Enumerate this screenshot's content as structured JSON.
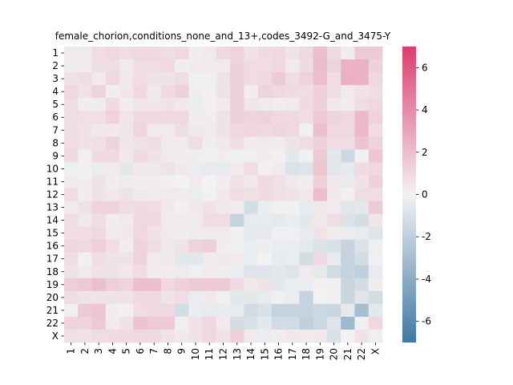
{
  "chart_data": {
    "type": "heatmap",
    "title": "female_chorion,conditions_none_and_13+,codes_3492-G_and_3475-Y",
    "rows": [
      "1",
      "2",
      "3",
      "4",
      "5",
      "6",
      "7",
      "8",
      "9",
      "10",
      "11",
      "12",
      "13",
      "14",
      "15",
      "16",
      "17",
      "18",
      "19",
      "20",
      "21",
      "22",
      "X"
    ],
    "cols": [
      "1",
      "2",
      "3",
      "4",
      "5",
      "6",
      "7",
      "8",
      "9",
      "10",
      "11",
      "12",
      "13",
      "14",
      "15",
      "16",
      "17",
      "18",
      "19",
      "20",
      "21",
      "22",
      "X"
    ],
    "vmin": -7,
    "vmax": 7,
    "colorbar_ticks": [
      "-6",
      "-4",
      "-2",
      "0",
      "2",
      "4",
      "6"
    ],
    "colorbar_tick_values": [
      -6,
      -4,
      -2,
      0,
      2,
      4,
      6
    ],
    "colormap": {
      "low": "#3f78a3",
      "mid": "#f2f2f2",
      "high": "#dc3e6e"
    },
    "values": [
      [
        0.3,
        0.3,
        0.8,
        1.0,
        0.8,
        1.0,
        1.0,
        0.8,
        1.0,
        0.2,
        0.3,
        1.0,
        1.2,
        0.6,
        0.9,
        1.0,
        0.6,
        1.0,
        2.0,
        1.0,
        0.2,
        1.6,
        1.5
      ],
      [
        0.2,
        0.2,
        0.8,
        0.8,
        0.3,
        0.8,
        0.8,
        0.9,
        0.2,
        0.3,
        0.3,
        0.3,
        1.3,
        0.8,
        0.8,
        1.0,
        0.3,
        0.9,
        2.1,
        1.2,
        2.5,
        2.5,
        1.3
      ],
      [
        0.6,
        0.8,
        0.3,
        1.0,
        0.4,
        0.8,
        0.6,
        0.6,
        0.8,
        -0.2,
        -0.2,
        0.6,
        1.4,
        0.8,
        0.9,
        1.5,
        0.8,
        1.2,
        2.0,
        0.8,
        2.6,
        2.5,
        1.0
      ],
      [
        1.0,
        0.6,
        1.2,
        0.2,
        0.5,
        1.0,
        0.4,
        0.9,
        1.3,
        0.2,
        0.1,
        0.6,
        1.3,
        0.2,
        1.2,
        1.0,
        0.9,
        0.8,
        1.3,
        0.8,
        0.3,
        0.6,
        0.8
      ],
      [
        0.8,
        0.2,
        0.2,
        0.9,
        0.2,
        0.5,
        0.5,
        0.6,
        0.4,
        -0.3,
        0.1,
        0.3,
        1.3,
        0.5,
        0.3,
        0.2,
        0.3,
        0.9,
        1.3,
        0.4,
        0.2,
        0.8,
        1.0
      ],
      [
        0.8,
        0.7,
        0.7,
        1.2,
        0.5,
        1.0,
        1.0,
        1.0,
        1.0,
        0.2,
        0.2,
        0.6,
        1.3,
        1.2,
        1.3,
        1.0,
        1.0,
        0.8,
        1.6,
        1.2,
        1.0,
        2.2,
        1.2
      ],
      [
        0.8,
        0.6,
        0.4,
        0.4,
        0.5,
        1.1,
        0.3,
        0.3,
        0.8,
        0.4,
        0.3,
        0.6,
        1.0,
        1.1,
        1.0,
        1.1,
        1.0,
        0.1,
        2.0,
        1.0,
        1.0,
        2.2,
        0.8
      ],
      [
        0.8,
        0.6,
        0.7,
        1.2,
        0.5,
        0.6,
        0.8,
        0.3,
        0.3,
        0.8,
        0.2,
        0.4,
        0.8,
        0.3,
        0.3,
        0.3,
        0.6,
        0.8,
        1.3,
        0.8,
        0.8,
        1.8,
        1.2
      ],
      [
        0.9,
        0.1,
        0.9,
        0.9,
        0.4,
        0.9,
        0.6,
        0.3,
        0.2,
        0.2,
        -0.2,
        0.2,
        -0.1,
        -0.2,
        0.2,
        0.1,
        -0.6,
        0.1,
        1.6,
        -0.6,
        -1.5,
        -0.1,
        1.7
      ],
      [
        -0.2,
        0.1,
        -0.3,
        0.3,
        -0.6,
        0.4,
        0.4,
        0.6,
        0.4,
        -0.3,
        -0.4,
        -0.4,
        0.3,
        0.8,
        0.1,
        0.3,
        -0.9,
        -0.8,
        1.7,
        -0.7,
        -0.5,
        0.9,
        1.0
      ],
      [
        0.3,
        0.2,
        0.6,
        0.2,
        0.3,
        0.2,
        0.2,
        0.1,
        0.0,
        0.3,
        0.0,
        0.2,
        0.6,
        0.4,
        0.9,
        0.7,
        0.4,
        0.2,
        1.3,
        0.4,
        -0.4,
        0.6,
        1.3
      ],
      [
        0.8,
        0.2,
        0.6,
        0.4,
        0.6,
        0.4,
        0.3,
        0.3,
        0.3,
        -0.3,
        0.1,
        0.4,
        0.8,
        0.7,
        0.9,
        0.7,
        0.6,
        0.4,
        2.0,
        0.4,
        0.1,
        0.8,
        0.8
      ],
      [
        0.3,
        0.6,
        1.2,
        1.2,
        0.8,
        0.9,
        0.8,
        0.4,
        0.1,
        0.4,
        0.6,
        0.4,
        0.2,
        -1.2,
        -0.3,
        0.1,
        0.1,
        -0.4,
        0.4,
        0.3,
        -0.7,
        -0.6,
        1.5
      ],
      [
        0.8,
        0.4,
        0.8,
        0.2,
        0.3,
        1.0,
        0.9,
        0.3,
        0.3,
        0.3,
        0.8,
        0.8,
        -1.8,
        -0.4,
        -0.4,
        -0.5,
        -0.3,
        -0.6,
        0.4,
        0.8,
        -0.9,
        -1.2,
        0.5
      ],
      [
        0.8,
        0.8,
        1.0,
        0.3,
        0.4,
        1.0,
        0.6,
        0.3,
        0.2,
        0.3,
        0.3,
        0.3,
        0.1,
        -0.5,
        -0.5,
        -0.2,
        -0.2,
        -0.4,
        0.6,
        0.2,
        -0.3,
        -0.4,
        -0.8
      ],
      [
        1.1,
        1.0,
        1.4,
        0.8,
        0.2,
        1.2,
        0.8,
        0.4,
        0.6,
        1.2,
        1.4,
        0.2,
        -0.1,
        -0.3,
        0.2,
        -0.3,
        -0.3,
        -0.5,
        -0.9,
        -1.0,
        -1.7,
        -0.9,
        -0.2
      ],
      [
        0.8,
        -0.1,
        0.8,
        0.6,
        0.6,
        1.2,
        0.3,
        0.4,
        -0.6,
        -0.6,
        0.3,
        0.4,
        0.3,
        -0.3,
        0.0,
        -0.4,
        -0.3,
        -1.2,
        0.9,
        -0.4,
        -1.8,
        -1.2,
        -0.1
      ],
      [
        0.6,
        0.3,
        0.6,
        0.6,
        0.4,
        0.8,
        0.2,
        0.2,
        0.3,
        -0.2,
        0.3,
        0.2,
        -0.3,
        -0.8,
        -0.8,
        -0.6,
        -0.8,
        0.3,
        -0.5,
        -1.3,
        -1.8,
        -2.0,
        -0.4
      ],
      [
        1.4,
        1.6,
        2.0,
        1.4,
        1.2,
        2.0,
        2.0,
        1.0,
        1.3,
        1.5,
        1.5,
        1.5,
        0.9,
        0.4,
        0.6,
        -0.6,
        -0.3,
        -0.3,
        0.1,
        0.1,
        -1.6,
        -1.2,
        0.2
      ],
      [
        0.8,
        0.6,
        0.6,
        0.6,
        0.6,
        0.9,
        0.9,
        0.6,
        0.8,
        -0.3,
        0.4,
        0.1,
        -0.6,
        -0.6,
        -0.4,
        -0.2,
        -0.3,
        -1.8,
        0.0,
        0.1,
        -1.6,
        -0.8,
        -1.2
      ],
      [
        0.1,
        1.6,
        1.7,
        0.2,
        0.1,
        0.8,
        1.0,
        1.0,
        -1.2,
        -0.3,
        -0.4,
        -0.4,
        -0.4,
        -1.3,
        -1.0,
        -1.8,
        -1.8,
        -1.7,
        -1.5,
        -1.6,
        -0.5,
        -3.0,
        -0.6
      ],
      [
        1.2,
        1.2,
        1.6,
        0.3,
        0.6,
        1.8,
        1.6,
        1.6,
        -0.2,
        0.6,
        1.0,
        0.3,
        -1.2,
        -1.0,
        -0.6,
        -1.3,
        -1.3,
        -2.0,
        -1.5,
        -0.8,
        -3.3,
        -0.2,
        1.0
      ],
      [
        0.7,
        0.6,
        0.8,
        0.9,
        0.9,
        1.0,
        0.9,
        0.6,
        0.4,
        0.6,
        1.0,
        0.6,
        1.3,
        0.3,
        -0.3,
        0.2,
        0.4,
        0.3,
        0.4,
        -1.0,
        0.0,
        0.6,
        -0.2
      ]
    ]
  }
}
